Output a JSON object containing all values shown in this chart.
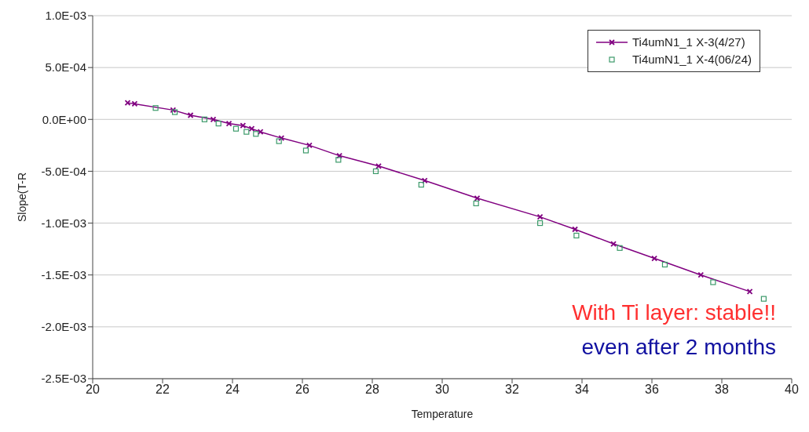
{
  "chart_data": {
    "type": "line",
    "xlabel": "Temperature",
    "ylabel": "Slope(T-R",
    "xlim": [
      20,
      40
    ],
    "xticks": [
      20,
      22,
      24,
      26,
      28,
      30,
      32,
      34,
      36,
      38,
      40
    ],
    "ylim": [
      -0.0025,
      0.001
    ],
    "yticks": [
      {
        "value": -0.0025,
        "label": "-2.5E-03"
      },
      {
        "value": -0.002,
        "label": "-2.0E-03"
      },
      {
        "value": -0.0015,
        "label": "-1.5E-03"
      },
      {
        "value": -0.001,
        "label": "-1.0E-03"
      },
      {
        "value": -0.0005,
        "label": "-5.0E-04"
      },
      {
        "value": 0,
        "label": "0.0E+00"
      },
      {
        "value": 0.0005,
        "label": "5.0E-04"
      },
      {
        "value": 0.001,
        "label": "1.0E-03"
      }
    ],
    "grid": "y",
    "legend": "top right",
    "series": [
      {
        "name": "Ti4umN1_1 X-3(4/27)",
        "marker": "cross",
        "color": "#800080",
        "x": [
          21.0,
          21.2,
          22.3,
          22.8,
          23.45,
          23.9,
          24.3,
          24.55,
          24.8,
          25.4,
          26.2,
          27.06,
          28.18,
          29.5,
          31.0,
          32.8,
          33.8,
          34.9,
          36.07,
          37.4,
          38.8
        ],
        "values": [
          0.00016,
          0.00015,
          9e-05,
          4e-05,
          0,
          -4e-05,
          -6e-05,
          -9e-05,
          -0.00012,
          -0.00018,
          -0.00025,
          -0.00035,
          -0.00045,
          -0.00059,
          -0.00076,
          -0.00094,
          -0.00106,
          -0.0012,
          -0.00134,
          -0.0015,
          -0.00166
        ]
      },
      {
        "name": "Ti4umN1_1 X-4(06/24)",
        "type": "scatter",
        "marker": "square",
        "color": "#3c9a6a",
        "x": [
          21.8,
          22.35,
          23.2,
          23.6,
          24.1,
          24.4,
          24.67,
          25.33,
          26.1,
          27.03,
          28.1,
          29.4,
          30.97,
          32.8,
          33.84,
          35.08,
          36.37,
          37.75,
          39.2
        ],
        "values": [
          0.00011,
          7e-05,
          0,
          -4e-05,
          -9e-05,
          -0.00012,
          -0.00014,
          -0.00021,
          -0.0003,
          -0.00039,
          -0.0005,
          -0.00063,
          -0.00081,
          -0.001,
          -0.00112,
          -0.00124,
          -0.0014,
          -0.00157,
          -0.00173
        ]
      }
    ],
    "annotations": [
      "With Ti layer: stable!!",
      "even after 2 months"
    ]
  }
}
